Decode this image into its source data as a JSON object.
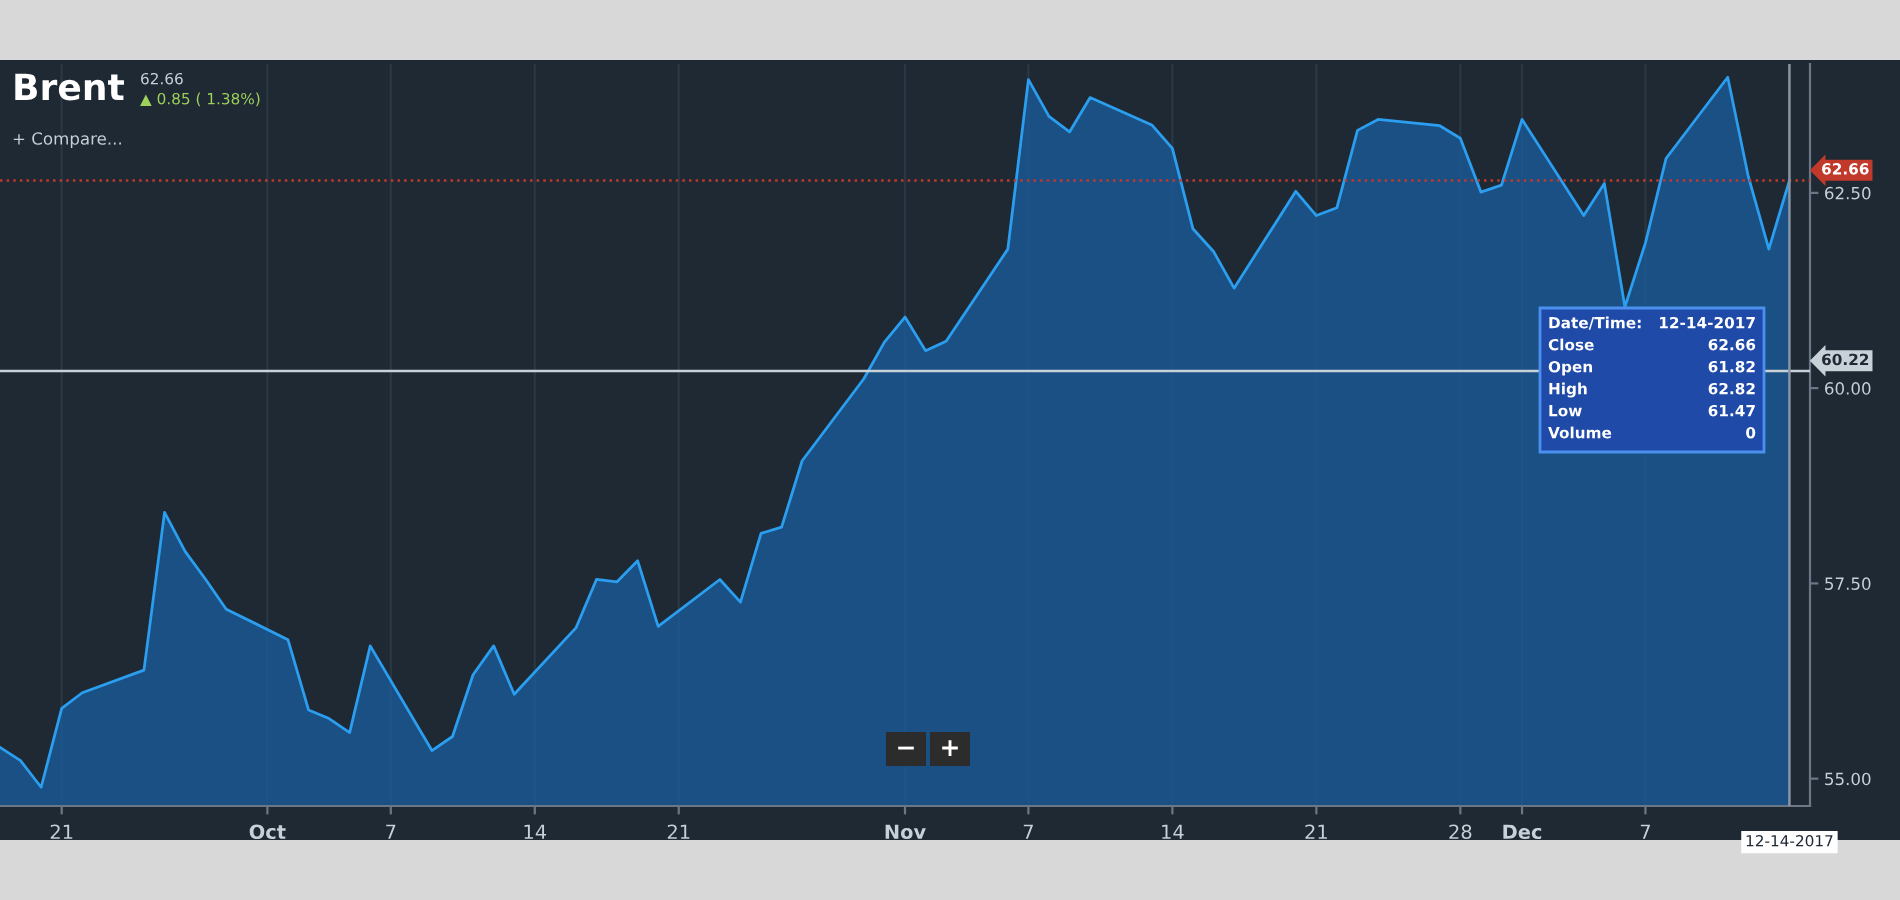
{
  "chart_data": {
    "type": "area",
    "title": "Brent",
    "subtitle": "62.66",
    "annotations": [
      "▲ 0.85 ( 1.38%)",
      "+ Compare...",
      "Date/Time:",
      "12-14-2017",
      "Close",
      "62.66",
      "Open",
      "61.82",
      "High",
      "62.82",
      "Low",
      "61.47",
      "Volume",
      "0",
      "−",
      "+"
    ],
    "x": [
      "2017-09-18",
      "2017-09-19",
      "2017-09-20",
      "2017-09-21",
      "2017-09-22",
      "2017-09-25",
      "2017-09-26",
      "2017-09-27",
      "2017-09-28",
      "2017-09-29",
      "2017-10-02",
      "2017-10-03",
      "2017-10-04",
      "2017-10-05",
      "2017-10-06",
      "2017-10-09",
      "2017-10-10",
      "2017-10-11",
      "2017-10-12",
      "2017-10-13",
      "2017-10-16",
      "2017-10-17",
      "2017-10-18",
      "2017-10-19",
      "2017-10-20",
      "2017-10-23",
      "2017-10-24",
      "2017-10-25",
      "2017-10-26",
      "2017-10-27",
      "2017-10-30",
      "2017-10-31",
      "2017-11-01",
      "2017-11-02",
      "2017-11-03",
      "2017-11-06",
      "2017-11-07",
      "2017-11-08",
      "2017-11-09",
      "2017-11-10",
      "2017-11-13",
      "2017-11-14",
      "2017-11-15",
      "2017-11-16",
      "2017-11-17",
      "2017-11-20",
      "2017-11-21",
      "2017-11-22",
      "2017-11-23",
      "2017-11-24",
      "2017-11-27",
      "2017-11-28",
      "2017-11-29",
      "2017-11-30",
      "2017-12-01",
      "2017-12-04",
      "2017-12-05",
      "2017-12-06",
      "2017-12-07",
      "2017-12-08",
      "2017-12-11",
      "2017-12-12",
      "2017-12-13",
      "2017-12-14"
    ],
    "series": [
      {
        "color": "#2b9ef0",
        "values": [
          55.4,
          55.23,
          54.89,
          55.9,
          56.1,
          56.39,
          58.41,
          57.91,
          57.55,
          57.17,
          56.78,
          55.88,
          55.77,
          55.59,
          56.7,
          55.36,
          55.54,
          56.33,
          56.7,
          56.08,
          56.93,
          57.55,
          57.52,
          57.79,
          56.95,
          57.55,
          57.26,
          58.14,
          58.22,
          59.07,
          60.12,
          60.59,
          60.91,
          60.48,
          60.6,
          61.78,
          63.95,
          63.48,
          63.28,
          63.72,
          63.37,
          63.07,
          62.04,
          61.75,
          61.28,
          62.52,
          62.21,
          62.31,
          63.3,
          63.44,
          63.36,
          63.2,
          62.51,
          62.6,
          63.44,
          62.21,
          62.62,
          61.04,
          61.86,
          62.94,
          63.98,
          62.71,
          61.78,
          62.66
        ]
      }
    ],
    "xlim": [
      "2017-09-18",
      "2017-12-15"
    ],
    "xticks": [
      {
        "value": "2017-09-21",
        "label": "21"
      },
      {
        "value": "2017-10-01",
        "label": "Oct"
      },
      {
        "value": "2017-10-07",
        "label": "7"
      },
      {
        "value": "2017-10-14",
        "label": "14"
      },
      {
        "value": "2017-10-21",
        "label": "21"
      },
      {
        "value": "2017-11-01",
        "label": "Nov"
      },
      {
        "value": "2017-11-07",
        "label": "7"
      },
      {
        "value": "2017-11-14",
        "label": "14"
      },
      {
        "value": "2017-11-21",
        "label": "21"
      },
      {
        "value": "2017-11-28",
        "label": "28"
      },
      {
        "value": "2017-12-01",
        "label": "Dec"
      },
      {
        "value": "2017-12-07",
        "label": "7"
      }
    ],
    "ylim": [
      54.65,
      64.15
    ],
    "yticks": [
      {
        "value": 55,
        "label": "55.00"
      },
      {
        "value": 57.5,
        "label": "57.50"
      },
      {
        "value": 60,
        "label": "60.00"
      },
      {
        "value": 62.5,
        "label": "62.50"
      }
    ],
    "ref_lines": [
      {
        "axis": "y",
        "value": 62.66,
        "label": "62.66",
        "color": "#c0392b",
        "line_style": "dotted"
      },
      {
        "axis": "y",
        "value": 60.22,
        "label": "60.22",
        "color": "#c8d0d8",
        "line_style": "solid"
      },
      {
        "axis": "x",
        "value": "2017-12-14",
        "label": "12-14-2017",
        "color": "#8a96a3",
        "line_style": "solid"
      }
    ],
    "grid": "x",
    "legend": false
  }
}
